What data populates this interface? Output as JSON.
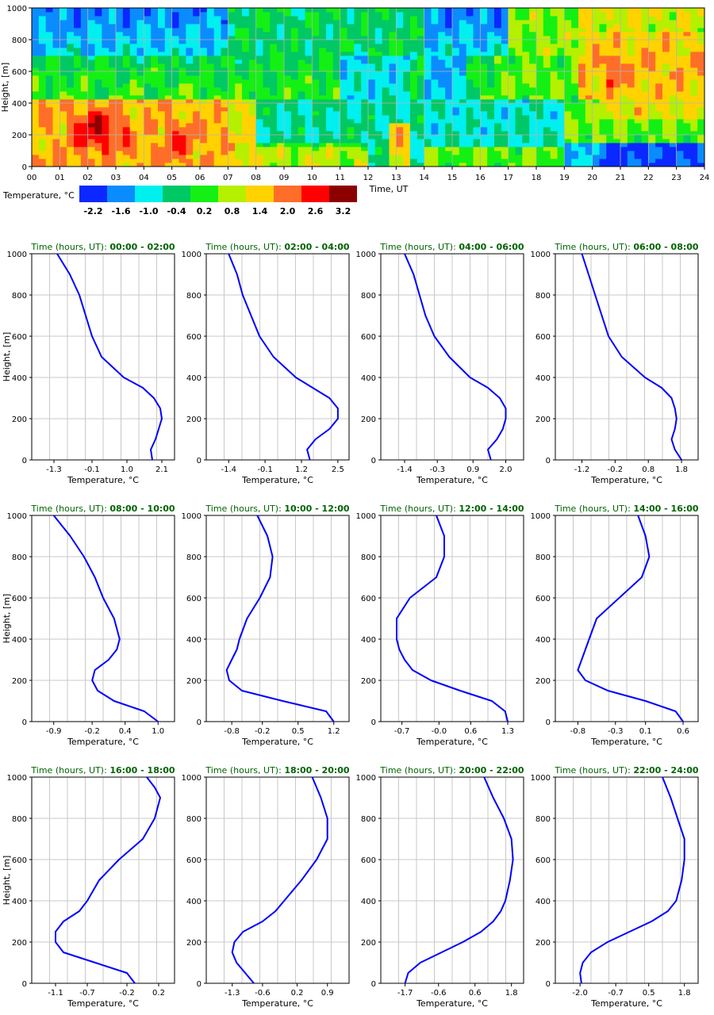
{
  "heatmap": {
    "type": "heatmap",
    "ylabel": "Height, [m]",
    "xlabel": "Time, UT",
    "x_ticks": [
      "00",
      "01",
      "02",
      "03",
      "04",
      "05",
      "06",
      "07",
      "08",
      "09",
      "10",
      "11",
      "12",
      "13",
      "14",
      "15",
      "16",
      "17",
      "18",
      "19",
      "20",
      "21",
      "22",
      "23",
      "24"
    ],
    "y_ticks": [
      "0",
      "200",
      "400",
      "600",
      "800",
      "1000"
    ],
    "xlim": [
      0,
      24
    ],
    "ylim": [
      0,
      1000
    ],
    "colorbar": {
      "label": "Temperature, °C",
      "colors": [
        "#0a28ff",
        "#0a8cff",
        "#00f0f0",
        "#00c864",
        "#14f014",
        "#b4f000",
        "#ffd200",
        "#ff6e28",
        "#ff0000",
        "#8c0000"
      ],
      "labels": [
        "-2.2",
        "-1.6",
        "-1.0",
        "-0.4",
        "0.2",
        "0.8",
        "1.4",
        "2.0",
        "2.6",
        "3.2"
      ]
    }
  },
  "chart_data": [
    {
      "type": "line",
      "title_prefix": "Time (hours, UT): ",
      "title_range": "00:00 - 02:00",
      "xlabel": "Temperature, °C",
      "ylabel": "Height, [m]",
      "ticks": [
        "-1.3",
        "-0.1",
        "1.0",
        "2.1"
      ],
      "xlim": [
        -2.0,
        2.5
      ],
      "ylim": [
        0,
        1000
      ],
      "series": [
        {
          "x": [
            1.8,
            1.75,
            1.9,
            2.0,
            2.1,
            2.05,
            1.85,
            1.5,
            0.9,
            0.2,
            -0.1,
            -0.3,
            -0.5,
            -0.8,
            -1.2
          ],
          "y": [
            0,
            50,
            100,
            150,
            200,
            250,
            300,
            350,
            400,
            500,
            600,
            700,
            800,
            900,
            1000
          ]
        }
      ]
    },
    {
      "type": "line",
      "title_prefix": "Time (hours, UT): ",
      "title_range": "02:00 - 04:00",
      "xlabel": "Temperature, °C",
      "ylabel": "Height, [m]",
      "ticks": [
        "-1.4",
        "-0.1",
        "1.2",
        "2.5"
      ],
      "xlim": [
        -2.2,
        2.9
      ],
      "ylim": [
        0,
        1000
      ],
      "series": [
        {
          "x": [
            1.5,
            1.4,
            1.7,
            2.2,
            2.5,
            2.5,
            2.2,
            1.6,
            1.0,
            0.2,
            -0.3,
            -0.6,
            -0.9,
            -1.1,
            -1.4
          ],
          "y": [
            0,
            50,
            100,
            150,
            200,
            250,
            300,
            350,
            400,
            500,
            600,
            700,
            800,
            900,
            1000
          ]
        }
      ]
    },
    {
      "type": "line",
      "title_prefix": "Time (hours, UT): ",
      "title_range": "04:00 - 06:00",
      "xlabel": "Temperature, °C",
      "ylabel": "Height, [m]",
      "ticks": [
        "-1.4",
        "-0.3",
        "0.9",
        "2.0"
      ],
      "xlim": [
        -2.2,
        2.6
      ],
      "ylim": [
        0,
        1000
      ],
      "series": [
        {
          "x": [
            1.5,
            1.4,
            1.7,
            1.9,
            2.0,
            2.0,
            1.8,
            1.4,
            0.8,
            0.1,
            -0.4,
            -0.7,
            -0.9,
            -1.1,
            -1.4
          ],
          "y": [
            0,
            50,
            100,
            150,
            200,
            250,
            300,
            350,
            400,
            500,
            600,
            700,
            800,
            900,
            1000
          ]
        }
      ]
    },
    {
      "type": "line",
      "title_prefix": "Time (hours, UT): ",
      "title_range": "06:00 - 08:00",
      "xlabel": "Temperature, °C",
      "ylabel": "Height, [m]",
      "ticks": [
        "-1.2",
        "-0.2",
        "0.8",
        "1.8"
      ],
      "xlim": [
        -2.0,
        2.3
      ],
      "ylim": [
        0,
        1000
      ],
      "series": [
        {
          "x": [
            1.8,
            1.6,
            1.5,
            1.6,
            1.65,
            1.6,
            1.5,
            1.2,
            0.7,
            0.0,
            -0.4,
            -0.6,
            -0.8,
            -1.0,
            -1.2
          ],
          "y": [
            0,
            50,
            100,
            150,
            200,
            250,
            300,
            350,
            400,
            500,
            600,
            700,
            800,
            900,
            1000
          ]
        }
      ]
    },
    {
      "type": "line",
      "title_prefix": "Time (hours, UT): ",
      "title_range": "08:00 - 10:00",
      "xlabel": "Temperature, °C",
      "ylabel": "Height, [m]",
      "ticks": [
        "-0.9",
        "-0.2",
        "0.4",
        "1.0"
      ],
      "xlim": [
        -1.3,
        1.3
      ],
      "ylim": [
        0,
        1000
      ],
      "series": [
        {
          "x": [
            1.0,
            0.75,
            0.2,
            -0.1,
            -0.2,
            -0.15,
            0.1,
            0.25,
            0.3,
            0.2,
            0.0,
            -0.15,
            -0.35,
            -0.6,
            -0.9
          ],
          "y": [
            0,
            50,
            100,
            150,
            200,
            250,
            300,
            350,
            400,
            500,
            600,
            700,
            800,
            900,
            1000
          ]
        }
      ]
    },
    {
      "type": "line",
      "title_prefix": "Time (hours, UT): ",
      "title_range": "10:00 - 12:00",
      "xlabel": "Temperature, °C",
      "ylabel": "Height, [m]",
      "ticks": [
        "-0.8",
        "-0.2",
        "0.5",
        "1.2"
      ],
      "xlim": [
        -1.3,
        1.5
      ],
      "ylim": [
        0,
        1000
      ],
      "series": [
        {
          "x": [
            1.2,
            1.05,
            0.2,
            -0.6,
            -0.85,
            -0.9,
            -0.8,
            -0.7,
            -0.65,
            -0.5,
            -0.25,
            -0.05,
            0.0,
            -0.1,
            -0.3
          ],
          "y": [
            0,
            50,
            100,
            150,
            200,
            250,
            300,
            350,
            400,
            500,
            600,
            700,
            800,
            900,
            1000
          ]
        }
      ]
    },
    {
      "type": "line",
      "title_prefix": "Time (hours, UT): ",
      "title_range": "12:00 - 14:00",
      "xlabel": "Temperature, °C",
      "ylabel": "Height, [m]",
      "ticks": [
        "-0.7",
        "-0.0",
        "0.6",
        "1.3"
      ],
      "xlim": [
        -1.1,
        1.6
      ],
      "ylim": [
        0,
        1000
      ],
      "series": [
        {
          "x": [
            1.3,
            1.25,
            1.0,
            0.4,
            -0.15,
            -0.5,
            -0.65,
            -0.75,
            -0.8,
            -0.8,
            -0.55,
            -0.05,
            0.1,
            0.1,
            -0.05
          ],
          "y": [
            0,
            50,
            100,
            150,
            200,
            250,
            300,
            350,
            400,
            500,
            600,
            700,
            800,
            900,
            1000
          ]
        }
      ]
    },
    {
      "type": "line",
      "title_prefix": "Time (hours, UT): ",
      "title_range": "14:00 - 16:00",
      "xlabel": "Temperature, °C",
      "ylabel": "Height, [m]",
      "ticks": [
        "-0.8",
        "-0.3",
        "0.1",
        "0.6"
      ],
      "xlim": [
        -1.1,
        0.8
      ],
      "ylim": [
        0,
        1000
      ],
      "series": [
        {
          "x": [
            0.6,
            0.5,
            0.1,
            -0.4,
            -0.7,
            -0.8,
            -0.75,
            -0.7,
            -0.65,
            -0.55,
            -0.25,
            0.05,
            0.15,
            0.1,
            0.0
          ],
          "y": [
            0,
            50,
            100,
            150,
            200,
            250,
            300,
            350,
            400,
            500,
            600,
            700,
            800,
            900,
            1000
          ]
        }
      ]
    },
    {
      "type": "line",
      "title_prefix": "Time (hours, UT): ",
      "title_range": "16:00 - 18:00",
      "xlabel": "Temperature, °C",
      "ylabel": "Height, [m]",
      "ticks": [
        "-1.1",
        "-0.7",
        "-0.2",
        "0.2"
      ],
      "xlim": [
        -1.4,
        0.4
      ],
      "ylim": [
        0,
        1000
      ],
      "series": [
        {
          "x": [
            -0.1,
            -0.2,
            -0.6,
            -1.0,
            -1.1,
            -1.1,
            -1.0,
            -0.8,
            -0.7,
            -0.55,
            -0.3,
            0.0,
            0.15,
            0.22,
            0.15,
            0.05
          ],
          "y": [
            0,
            50,
            100,
            150,
            200,
            250,
            300,
            350,
            400,
            500,
            600,
            700,
            800,
            900,
            950,
            1000
          ]
        }
      ]
    },
    {
      "type": "line",
      "title_prefix": "Time (hours, UT): ",
      "title_range": "18:00 - 20:00",
      "xlabel": "Temperature, °C",
      "ylabel": "Height, [m]",
      "ticks": [
        "-1.3",
        "-0.6",
        "0.2",
        "0.9"
      ],
      "xlim": [
        -1.9,
        1.4
      ],
      "ylim": [
        0,
        1000
      ],
      "series": [
        {
          "x": [
            -0.8,
            -1.0,
            -1.2,
            -1.3,
            -1.25,
            -1.05,
            -0.6,
            -0.3,
            -0.1,
            0.3,
            0.65,
            0.9,
            0.9,
            0.75,
            0.55
          ],
          "y": [
            0,
            50,
            100,
            150,
            200,
            250,
            300,
            350,
            400,
            500,
            600,
            700,
            800,
            900,
            1000
          ]
        }
      ]
    },
    {
      "type": "line",
      "title_prefix": "Time (hours, UT): ",
      "title_range": "20:00 - 22:00",
      "xlabel": "Temperature, °C",
      "ylabel": "Height, [m]",
      "ticks": [
        "-1.7",
        "-0.6",
        "0.6",
        "1.8"
      ],
      "xlim": [
        -2.5,
        2.2
      ],
      "ylim": [
        0,
        1000
      ],
      "series": [
        {
          "x": [
            -1.7,
            -1.6,
            -1.2,
            -0.5,
            0.2,
            0.8,
            1.2,
            1.45,
            1.6,
            1.75,
            1.85,
            1.8,
            1.55,
            1.2,
            0.9
          ],
          "y": [
            0,
            50,
            100,
            150,
            200,
            250,
            300,
            350,
            400,
            500,
            600,
            700,
            800,
            900,
            1000
          ]
        }
      ]
    },
    {
      "type": "line",
      "title_prefix": "Time (hours, UT): ",
      "title_range": "22:00 - 24:00",
      "xlabel": "Temperature, °C",
      "ylabel": "Height, [m]",
      "ticks": [
        "-2.0",
        "-0.7",
        "0.5",
        "1.8"
      ],
      "xlim": [
        -2.9,
        2.3
      ],
      "ylim": [
        0,
        1000
      ],
      "series": [
        {
          "x": [
            -1.95,
            -2.0,
            -1.9,
            -1.6,
            -1.0,
            -0.2,
            0.6,
            1.2,
            1.5,
            1.7,
            1.8,
            1.8,
            1.55,
            1.3,
            1.0
          ],
          "y": [
            0,
            50,
            100,
            150,
            200,
            250,
            300,
            350,
            400,
            500,
            600,
            700,
            800,
            900,
            1000
          ]
        }
      ]
    }
  ]
}
